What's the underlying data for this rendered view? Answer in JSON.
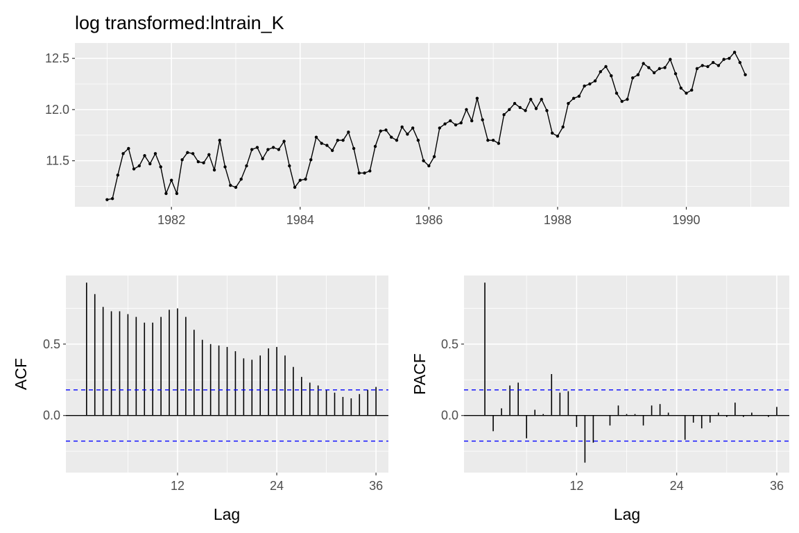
{
  "chart_data": [
    {
      "type": "line",
      "title": "log transformed:lntrain_K",
      "xlabel": "",
      "ylabel": "",
      "x_start": 1981,
      "x_step": 0.08333333,
      "xlim": [
        1980.5,
        1991.6
      ],
      "ylim": [
        11.05,
        12.65
      ],
      "xticks": [
        1982,
        1984,
        1986,
        1988,
        1990
      ],
      "xtick_labels": [
        "1982",
        "1984",
        "1986",
        "1988",
        "1990"
      ],
      "yticks": [
        11.5,
        12.0,
        12.5
      ],
      "ytick_labels": [
        "11.5",
        "12.0",
        "12.5"
      ],
      "grid": true,
      "series": [
        {
          "values": [
            11.12,
            11.13,
            11.36,
            11.57,
            11.62,
            11.42,
            11.45,
            11.55,
            11.47,
            11.57,
            11.44,
            11.18,
            11.31,
            11.18,
            11.51,
            11.58,
            11.57,
            11.49,
            11.48,
            11.56,
            11.41,
            11.7,
            11.44,
            11.26,
            11.24,
            11.32,
            11.45,
            11.61,
            11.63,
            11.52,
            11.61,
            11.63,
            11.61,
            11.69,
            11.45,
            11.24,
            11.31,
            11.32,
            11.51,
            11.73,
            11.67,
            11.65,
            11.6,
            11.7,
            11.7,
            11.78,
            11.62,
            11.38,
            11.38,
            11.4,
            11.64,
            11.79,
            11.8,
            11.73,
            11.7,
            11.83,
            11.76,
            11.82,
            11.7,
            11.5,
            11.45,
            11.54,
            11.82,
            11.86,
            11.89,
            11.85,
            11.87,
            12.0,
            11.89,
            12.11,
            11.9,
            11.7,
            11.7,
            11.67,
            11.95,
            12.0,
            12.06,
            12.02,
            11.99,
            12.1,
            12.01,
            12.1,
            11.99,
            11.77,
            11.74,
            11.83,
            12.06,
            12.11,
            12.13,
            12.23,
            12.25,
            12.28,
            12.37,
            12.42,
            12.33,
            12.16,
            12.08,
            12.1,
            12.31,
            12.34,
            12.45,
            12.41,
            12.36,
            12.4,
            12.41,
            12.49,
            12.35,
            12.21,
            12.16,
            12.19,
            12.4,
            12.43,
            12.42,
            12.46,
            12.43,
            12.49,
            12.5,
            12.56,
            12.46,
            12.34
          ]
        }
      ]
    },
    {
      "type": "bar",
      "title": "",
      "xlabel": "Lag",
      "ylabel": "ACF",
      "lags": [
        1,
        2,
        3,
        4,
        5,
        6,
        7,
        8,
        9,
        10,
        11,
        12,
        13,
        14,
        15,
        16,
        17,
        18,
        19,
        20,
        21,
        22,
        23,
        24,
        25,
        26,
        27,
        28,
        29,
        30,
        31,
        32,
        33,
        34,
        35,
        36
      ],
      "values": [
        0.93,
        0.85,
        0.76,
        0.73,
        0.73,
        0.71,
        0.69,
        0.65,
        0.65,
        0.69,
        0.74,
        0.75,
        0.69,
        0.6,
        0.53,
        0.5,
        0.49,
        0.48,
        0.45,
        0.4,
        0.39,
        0.42,
        0.47,
        0.48,
        0.42,
        0.34,
        0.27,
        0.23,
        0.21,
        0.18,
        0.16,
        0.13,
        0.12,
        0.15,
        0.18,
        0.2
      ],
      "ci": 0.179,
      "xlim": [
        -1.5,
        37.5
      ],
      "ylim": [
        -0.4,
        0.98
      ],
      "xticks": [
        12,
        24,
        36
      ],
      "xtick_labels": [
        "12",
        "24",
        "36"
      ],
      "yticks": [
        0.0,
        0.5
      ],
      "ytick_labels": [
        "0.0",
        "0.5"
      ],
      "grid": true
    },
    {
      "type": "bar",
      "title": "",
      "xlabel": "Lag",
      "ylabel": "PACF",
      "lags": [
        1,
        2,
        3,
        4,
        5,
        6,
        7,
        8,
        9,
        10,
        11,
        12,
        13,
        14,
        15,
        16,
        17,
        18,
        19,
        20,
        21,
        22,
        23,
        24,
        25,
        26,
        27,
        28,
        29,
        30,
        31,
        32,
        33,
        34,
        35,
        36
      ],
      "values": [
        0.93,
        -0.11,
        0.05,
        0.21,
        0.23,
        -0.16,
        0.04,
        0.01,
        0.29,
        0.16,
        0.17,
        -0.08,
        -0.33,
        -0.19,
        0.0,
        -0.07,
        0.07,
        0.01,
        0.01,
        -0.07,
        0.07,
        0.08,
        0.02,
        0.0,
        -0.17,
        -0.05,
        -0.09,
        -0.05,
        0.02,
        -0.01,
        0.09,
        -0.01,
        0.02,
        0.0,
        -0.01,
        0.06
      ],
      "ci": 0.179,
      "xlim": [
        -1.5,
        37.5
      ],
      "ylim": [
        -0.4,
        0.98
      ],
      "xticks": [
        12,
        24,
        36
      ],
      "xtick_labels": [
        "12",
        "24",
        "36"
      ],
      "yticks": [
        0.0,
        0.5
      ],
      "ytick_labels": [
        "0.0",
        "0.5"
      ],
      "grid": true
    }
  ],
  "colors": {
    "panel_bg": "#ebebeb",
    "grid_major": "#ffffff",
    "line": "#000000",
    "ci_line": "#0000ff",
    "tick_text": "#4d4d4d"
  }
}
